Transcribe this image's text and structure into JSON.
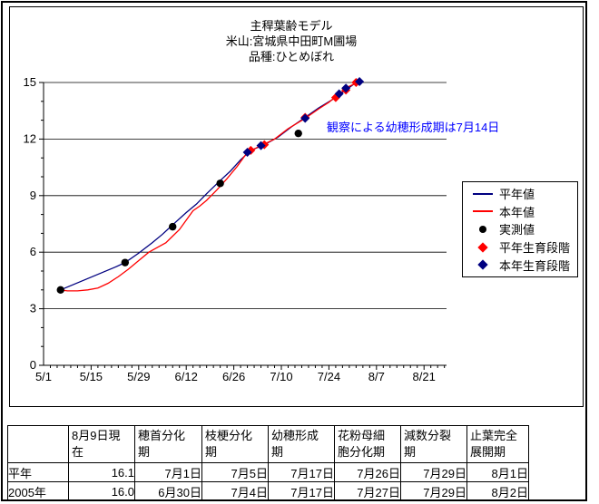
{
  "chart_data": {
    "type": "line",
    "title_lines": [
      "主稈葉齢モデル",
      "米山:宮城県中田町M圃場",
      "品種:ひとめぼれ"
    ],
    "annotation": {
      "text": "観察による幼穂形成期は7月14日",
      "color": "#0000FF"
    },
    "xlabel": "",
    "ylabel": "",
    "ylim": [
      0,
      15
    ],
    "y_ticks": [
      0,
      3,
      6,
      9,
      12,
      15
    ],
    "y_tick_labels": [
      "0",
      "3",
      "6",
      "9",
      "12",
      "15"
    ],
    "x_tick_labels": [
      "5/1",
      "5/15",
      "5/29",
      "6/12",
      "6/26",
      "7/10",
      "7/24",
      "8/7",
      "8/21"
    ],
    "grid": "horizontal",
    "legend_position": "right",
    "legend_entries": [
      "平年値",
      "本年値",
      "実測値",
      "平年生育段階",
      "本年生育段階"
    ],
    "series": [
      {
        "name": "平年値",
        "kind": "line",
        "color": "#000080",
        "points": [
          [
            "5/6",
            4.0
          ],
          [
            "5/10",
            4.3
          ],
          [
            "5/14",
            4.6
          ],
          [
            "5/18",
            4.9
          ],
          [
            "5/22",
            5.2
          ],
          [
            "5/25",
            5.45
          ],
          [
            "5/29",
            5.95
          ],
          [
            "6/2",
            6.5
          ],
          [
            "6/5",
            6.95
          ],
          [
            "6/8",
            7.45
          ],
          [
            "6/12",
            8.1
          ],
          [
            "6/15",
            8.55
          ],
          [
            "6/18",
            9.1
          ],
          [
            "6/22",
            9.8
          ],
          [
            "6/25",
            10.3
          ],
          [
            "6/28",
            10.9
          ],
          [
            "7/1",
            11.4
          ],
          [
            "7/5",
            11.7
          ],
          [
            "7/9",
            12.1
          ],
          [
            "7/13",
            12.65
          ],
          [
            "7/17",
            13.15
          ],
          [
            "7/21",
            13.65
          ],
          [
            "7/26",
            14.2
          ],
          [
            "7/29",
            14.6
          ],
          [
            "8/1",
            15.0
          ]
        ]
      },
      {
        "name": "本年値",
        "kind": "line",
        "color": "#FF0000",
        "points": [
          [
            "5/6",
            4.0
          ],
          [
            "5/8",
            3.95
          ],
          [
            "5/11",
            3.95
          ],
          [
            "5/14",
            4.0
          ],
          [
            "5/17",
            4.1
          ],
          [
            "5/20",
            4.35
          ],
          [
            "5/23",
            4.7
          ],
          [
            "5/26",
            5.1
          ],
          [
            "5/29",
            5.55
          ],
          [
            "6/1",
            6.0
          ],
          [
            "6/4",
            6.3
          ],
          [
            "6/6",
            6.5
          ],
          [
            "6/8",
            6.85
          ],
          [
            "6/10",
            7.2
          ],
          [
            "6/12",
            7.7
          ],
          [
            "6/14",
            8.2
          ],
          [
            "6/16",
            8.45
          ],
          [
            "6/18",
            8.75
          ],
          [
            "6/21",
            9.3
          ],
          [
            "6/24",
            9.9
          ],
          [
            "6/27",
            10.55
          ],
          [
            "6/30",
            11.3
          ],
          [
            "7/4",
            11.65
          ],
          [
            "7/8",
            12.0
          ],
          [
            "7/12",
            12.55
          ],
          [
            "7/17",
            13.1
          ],
          [
            "7/21",
            13.6
          ],
          [
            "7/24",
            13.95
          ],
          [
            "7/27",
            14.4
          ],
          [
            "7/30",
            14.8
          ],
          [
            "8/2",
            15.05
          ]
        ]
      },
      {
        "name": "実測値",
        "kind": "dot",
        "color": "#000000",
        "points": [
          [
            "5/6",
            4.0
          ],
          [
            "5/25",
            5.45
          ],
          [
            "6/8",
            7.35
          ],
          [
            "6/22",
            9.65
          ],
          [
            "7/15",
            12.3
          ]
        ]
      },
      {
        "name": "平年生育段階",
        "kind": "diamond",
        "color": "#FF0000",
        "points": [
          [
            "7/1",
            11.4
          ],
          [
            "7/5",
            11.7
          ],
          [
            "7/17",
            13.15
          ],
          [
            "7/26",
            14.2
          ],
          [
            "7/29",
            14.6
          ],
          [
            "8/1",
            15.0
          ]
        ]
      },
      {
        "name": "本年生育段階",
        "kind": "diamond",
        "color": "#000080",
        "points": [
          [
            "6/30",
            11.3
          ],
          [
            "7/4",
            11.65
          ],
          [
            "7/17",
            13.1
          ],
          [
            "7/27",
            14.4
          ],
          [
            "7/29",
            14.7
          ],
          [
            "8/2",
            15.05
          ]
        ]
      }
    ]
  },
  "table": {
    "col_headers": [
      "",
      "8月9日現在",
      "穂首分化期",
      "枝梗分化期",
      "幼穂形成期",
      "花粉母細胞分化期",
      "減数分裂期",
      "止葉完全展開期"
    ],
    "rows": [
      {
        "label": "平年",
        "values": [
          "16.1",
          "7月1日",
          "7月5日",
          "7月17日",
          "7月26日",
          "7月29日",
          "8月1日"
        ]
      },
      {
        "label": "2005年",
        "values": [
          "16.0",
          "6月30日",
          "7月4日",
          "7月17日",
          "7月27日",
          "7月29日",
          "8月2日"
        ]
      }
    ]
  }
}
